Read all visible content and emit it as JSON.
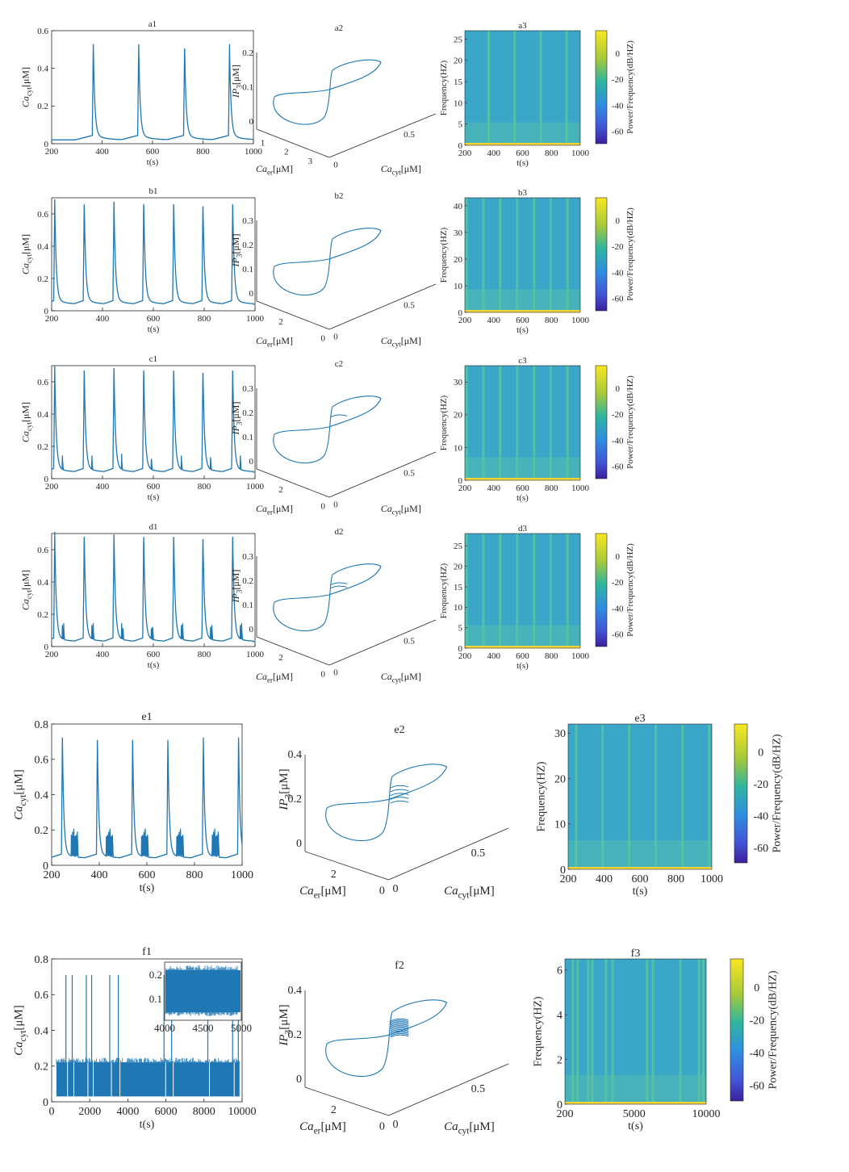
{
  "colors": {
    "trace": "#1f77b4",
    "axis": "#262626",
    "specBg": "#3aa6c8",
    "specBand": "#f2d43a"
  },
  "colorbar": {
    "ticks": [
      "0",
      "-20",
      "-40",
      "-60"
    ],
    "label": "Power/Frequency(dB/HZ)"
  },
  "chart_data": [
    {
      "id": "a",
      "type": "line",
      "t1": {
        "title": "a1",
        "xlabel": "t(s)",
        "ylabel": "Ca_cyt[μM]",
        "xlim": [
          200,
          1000
        ],
        "ylim": [
          0,
          0.6
        ],
        "xticks": [
          "200",
          "400",
          "600",
          "800",
          "1000"
        ],
        "yticks": [
          "0",
          "0.2",
          "0.4",
          "0.6"
        ],
        "spike_times": [
          365,
          545,
          727,
          905
        ],
        "peak": 0.51,
        "base": 0.02,
        "bursts": 0
      },
      "t2": {
        "title": "a2",
        "zlabel": "IP_3[μM]",
        "xlabel": "Ca_cyt[μM]",
        "ylabel": "Ca_er[μM]",
        "zticks": [
          "0",
          "0.1",
          "0.2"
        ],
        "xticks": [
          "0",
          "0.5"
        ],
        "yticks": [
          "1",
          "2",
          "3"
        ],
        "loops": 1
      },
      "t3": {
        "title": "a3",
        "ylabel": "Frequency(HZ)",
        "xlabel": "t(s)",
        "yticks": [
          "0",
          "5",
          "10",
          "15",
          "20",
          "25"
        ],
        "xticks": [
          "200",
          "400",
          "600",
          "800",
          "1000"
        ],
        "ymax": 27,
        "band_times": [
          365,
          545,
          727,
          905
        ]
      }
    },
    {
      "id": "b",
      "type": "line",
      "t1": {
        "title": "b1",
        "xlabel": "t(s)",
        "ylabel": "Ca_cyt[μM]",
        "xlim": [
          200,
          1000
        ],
        "ylim": [
          0,
          0.7
        ],
        "xticks": [
          "200",
          "400",
          "600",
          "800",
          "1000"
        ],
        "yticks": [
          "0",
          "0.2",
          "0.4",
          "0.6"
        ],
        "spike_times": [
          212,
          328,
          445,
          562,
          680,
          795,
          912
        ],
        "peak": 0.66,
        "base": 0.04,
        "bursts": 0
      },
      "t2": {
        "title": "b2",
        "zlabel": "IP_3[μM]",
        "xlabel": "Ca_cyt[μM]",
        "ylabel": "Ca_er[μM]",
        "zticks": [
          "0",
          "0.1",
          "0.2",
          "0.3"
        ],
        "xticks": [
          "0",
          "0.5"
        ],
        "yticks": [
          "0",
          "2"
        ],
        "loops": 1
      },
      "t3": {
        "title": "b3",
        "ylabel": "Frequency(HZ)",
        "xlabel": "t(s)",
        "yticks": [
          "0",
          "10",
          "20",
          "30",
          "40"
        ],
        "xticks": [
          "200",
          "400",
          "600",
          "800",
          "1000"
        ],
        "ymax": 43,
        "band_times": [
          212,
          328,
          445,
          562,
          680,
          795,
          912
        ]
      }
    },
    {
      "id": "c",
      "type": "line",
      "t1": {
        "title": "c1",
        "xlabel": "t(s)",
        "ylabel": "Ca_cyt[μM]",
        "xlim": [
          200,
          1000
        ],
        "ylim": [
          0,
          0.7
        ],
        "xticks": [
          "200",
          "400",
          "600",
          "800",
          "1000"
        ],
        "yticks": [
          "0",
          "0.2",
          "0.4",
          "0.6"
        ],
        "spike_times": [
          212,
          328,
          445,
          562,
          680,
          795,
          912
        ],
        "peak": 0.67,
        "base": 0.04,
        "bursts": 1
      },
      "t2": {
        "title": "c2",
        "zlabel": "IP_3[μM]",
        "xlabel": "Ca_cyt[μM]",
        "ylabel": "Ca_er[μM]",
        "zticks": [
          "0",
          "0.1",
          "0.2",
          "0.3"
        ],
        "xticks": [
          "0",
          "0.5"
        ],
        "yticks": [
          "0",
          "2"
        ],
        "loops": 2
      },
      "t3": {
        "title": "c3",
        "ylabel": "Frequency(HZ)",
        "xlabel": "t(s)",
        "yticks": [
          "0",
          "10",
          "20",
          "30"
        ],
        "xticks": [
          "200",
          "400",
          "600",
          "800",
          "1000"
        ],
        "ymax": 35,
        "band_times": [
          212,
          328,
          445,
          562,
          680,
          795,
          912
        ]
      }
    },
    {
      "id": "d",
      "type": "line",
      "t1": {
        "title": "d1",
        "xlabel": "t(s)",
        "ylabel": "Ca_cyt[μM]",
        "xlim": [
          200,
          1000
        ],
        "ylim": [
          0,
          0.7
        ],
        "xticks": [
          "200",
          "400",
          "600",
          "800",
          "1000"
        ],
        "yticks": [
          "0",
          "0.2",
          "0.4",
          "0.6"
        ],
        "spike_times": [
          212,
          328,
          445,
          562,
          680,
          795,
          912
        ],
        "peak": 0.68,
        "base": 0.03,
        "bursts": 2
      },
      "t2": {
        "title": "d2",
        "zlabel": "IP_3[μM]",
        "xlabel": "Ca_cyt[μM]",
        "ylabel": "Ca_er[μM]",
        "zticks": [
          "0",
          "0.1",
          "0.2",
          "0.3"
        ],
        "xticks": [
          "0",
          "0.5"
        ],
        "yticks": [
          "0",
          "2"
        ],
        "loops": 3
      },
      "t3": {
        "title": "d3",
        "ylabel": "Frequency(HZ)",
        "xlabel": "t(s)",
        "yticks": [
          "0",
          "5",
          "10",
          "15",
          "20",
          "25"
        ],
        "xticks": [
          "200",
          "400",
          "600",
          "800",
          "1000"
        ],
        "ymax": 28,
        "band_times": [
          212,
          328,
          445,
          562,
          680,
          795,
          912
        ]
      }
    },
    {
      "id": "e",
      "type": "line",
      "t1": {
        "title": "e1",
        "xlabel": "t(s)",
        "ylabel": "Ca_cyt[μM]",
        "xlim": [
          200,
          1000
        ],
        "ylim": [
          0,
          0.8
        ],
        "xticks": [
          "200",
          "400",
          "600",
          "800",
          "1000"
        ],
        "yticks": [
          "0",
          "0.2",
          "0.4",
          "0.6",
          "0.8"
        ],
        "spike_times": [
          245,
          392,
          540,
          688,
          837,
          985
        ],
        "peak": 0.71,
        "base": 0.04,
        "bursts": 6
      },
      "t2": {
        "title": "e2",
        "zlabel": "IP_3[μM]",
        "xlabel": "Ca_cyt[μM]",
        "ylabel": "Ca_er[μM]",
        "zticks": [
          "0",
          "0.2",
          "0.4"
        ],
        "xticks": [
          "0",
          "0.5"
        ],
        "yticks": [
          "0",
          "2"
        ],
        "loops": 6
      },
      "t3": {
        "title": "e3",
        "ylabel": "Frequency(HZ)",
        "xlabel": "t(s)",
        "yticks": [
          "0",
          "10",
          "20",
          "30"
        ],
        "xticks": [
          "200",
          "400",
          "600",
          "800",
          "1000"
        ],
        "ymax": 32,
        "band_times": [
          245,
          392,
          540,
          688,
          837,
          985
        ]
      }
    },
    {
      "id": "f",
      "type": "line",
      "t1": {
        "title": "f1",
        "xlabel": "t(s)",
        "ylabel": "Ca_cyt[μM]",
        "xlim": [
          0,
          10000
        ],
        "ylim": [
          0,
          0.8
        ],
        "xticks": [
          "0",
          "2000",
          "4000",
          "6000",
          "8000",
          "10000"
        ],
        "yticks": [
          "0",
          "0.2",
          "0.4",
          "0.6",
          "0.8"
        ],
        "spike_times": [
          750,
          1080,
          1820,
          2100,
          3050,
          3500,
          5900,
          6300,
          8200,
          9500,
          9800
        ],
        "peak": 0.71,
        "base": 0.03,
        "bursts": 0,
        "noise_band": [
          0.03,
          0.22
        ],
        "inset": {
          "xticks": [
            "4000",
            "4500",
            "5000"
          ],
          "yticks": [
            "0.1",
            "0.2"
          ],
          "range": [
            0.05,
            0.23
          ]
        }
      },
      "t2": {
        "title": "f2",
        "zlabel": "IP_3[μM]",
        "xlabel": "Ca_cyt[μM]",
        "ylabel": "Ca_er[μM]",
        "zticks": [
          "0",
          "0.2",
          "0.4"
        ],
        "xticks": [
          "0",
          "0.5"
        ],
        "yticks": [
          "0",
          "2"
        ],
        "loops": 14
      },
      "t3": {
        "title": "f3",
        "ylabel": "Frequency(HZ)",
        "xlabel": "t(s)",
        "yticks": [
          "0",
          "2",
          "4",
          "6"
        ],
        "xticks": [
          "200",
          "5000",
          "10000"
        ],
        "ymax": 6.5,
        "band_times": [
          750,
          1080,
          1820,
          2100,
          3050,
          3500,
          5900,
          6300,
          8200,
          9500,
          9800
        ]
      }
    }
  ]
}
